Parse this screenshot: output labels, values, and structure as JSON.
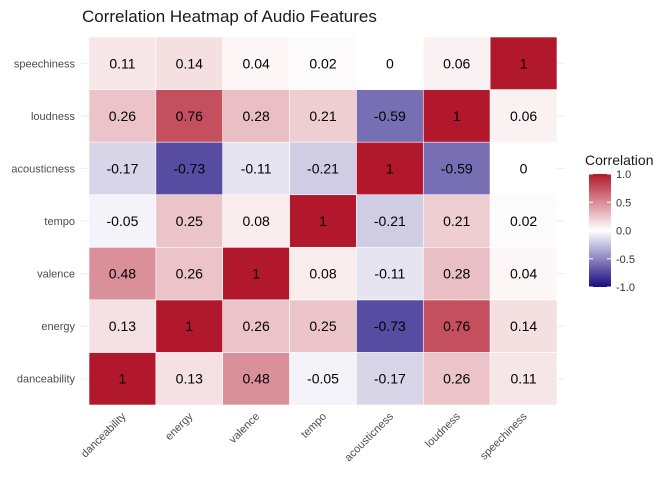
{
  "chart_data": {
    "type": "heatmap",
    "title": "Correlation Heatmap of Audio Features",
    "xlabel": "",
    "ylabel": "",
    "x_categories": [
      "danceability",
      "energy",
      "valence",
      "tempo",
      "acousticness",
      "loudness",
      "speechiness"
    ],
    "y_categories": [
      "danceability",
      "energy",
      "valence",
      "tempo",
      "acousticness",
      "loudness",
      "speechiness"
    ],
    "matrix": [
      [
        1,
        0.13,
        0.48,
        -0.05,
        -0.17,
        0.26,
        0.11
      ],
      [
        0.13,
        1,
        0.26,
        0.25,
        -0.73,
        0.76,
        0.14
      ],
      [
        0.48,
        0.26,
        1,
        0.08,
        -0.11,
        0.28,
        0.04
      ],
      [
        -0.05,
        0.25,
        0.08,
        1,
        -0.21,
        0.21,
        0.02
      ],
      [
        -0.17,
        -0.73,
        -0.11,
        -0.21,
        1,
        -0.59,
        0
      ],
      [
        0.26,
        0.76,
        0.28,
        0.21,
        -0.59,
        1,
        0.06
      ],
      [
        0.11,
        0.14,
        0.04,
        0.02,
        0,
        0.06,
        1
      ]
    ],
    "color_scale": {
      "low": "#1a0a80",
      "mid": "#ffffff",
      "high": "#b2182b",
      "domain": [
        -1,
        1
      ]
    },
    "legend": {
      "title": "Correlation",
      "ticks": [
        "1.0",
        "0.5",
        "0.0",
        "-0.5",
        "-1.0"
      ],
      "tick_values": [
        1,
        0.5,
        0,
        -0.5,
        -1
      ],
      "placement": "right"
    },
    "grid": true
  }
}
